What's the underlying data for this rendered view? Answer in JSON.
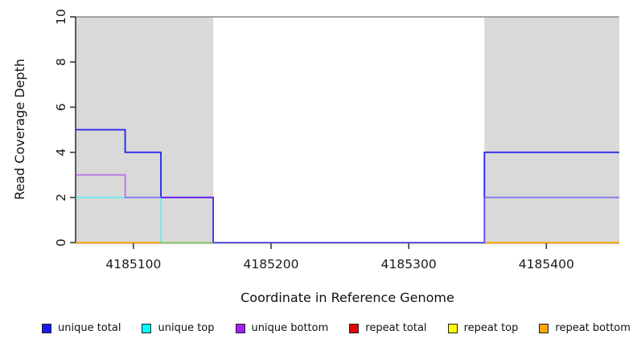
{
  "chart_data": {
    "type": "line",
    "subtype": "step-coverage",
    "title": "",
    "xlabel": "Coordinate in Reference Genome",
    "ylabel": "Read Coverage Depth",
    "xlim": [
      4185058,
      4185453
    ],
    "ylim": [
      0,
      10
    ],
    "x_ticks": [
      4185100,
      4185200,
      4185300,
      4185400
    ],
    "y_ticks": [
      0,
      2,
      4,
      6,
      8,
      10
    ],
    "grid": false,
    "cap_line": {
      "y": 10,
      "color": "#8C8C8C"
    },
    "shaded_regions": {
      "color": "#D9D9D9",
      "ranges": [
        [
          4185058,
          4185158
        ],
        [
          4185355,
          4185453
        ]
      ]
    },
    "series": [
      {
        "name": "repeat total",
        "color": "#E60000",
        "opacity": 1,
        "x": [
          4185058
        ],
        "y": [
          0
        ],
        "x_end": 4185453
      },
      {
        "name": "repeat top",
        "color": "#FFFF00",
        "opacity": 1,
        "x": [
          4185058
        ],
        "y": [
          0
        ],
        "x_end": 4185453
      },
      {
        "name": "repeat bottom",
        "color": "#FFA500",
        "opacity": 1,
        "x": [
          4185058
        ],
        "y": [
          0
        ],
        "x_end": 4185453
      },
      {
        "name": "unique total",
        "color": "#2020EE",
        "opacity": 1,
        "x": [
          4185058,
          4185094,
          4185120,
          4185158,
          4185355
        ],
        "y": [
          5,
          4,
          2,
          0,
          4
        ],
        "x_end": 4185453
      },
      {
        "name": "unique top",
        "color": "#00FFFF",
        "opacity": 0.5,
        "x": [
          4185058,
          4185120,
          4185355
        ],
        "y": [
          2,
          0,
          2
        ],
        "x_end": 4185453
      },
      {
        "name": "unique bottom",
        "color": "#A020F0",
        "opacity": 0.55,
        "x": [
          4185058,
          4185094,
          4185158,
          4185355
        ],
        "y": [
          3,
          2,
          0,
          2
        ],
        "x_end": 4185453
      }
    ],
    "legend": {
      "position": "bottom",
      "items": [
        {
          "label": "unique total",
          "color": "#1A1AEE"
        },
        {
          "label": "unique top",
          "color": "#00FFFF"
        },
        {
          "label": "unique bottom",
          "color": "#A020F0"
        },
        {
          "label": "repeat total",
          "color": "#E60000"
        },
        {
          "label": "repeat top",
          "color": "#FFFF00"
        },
        {
          "label": "repeat bottom",
          "color": "#FFA500"
        }
      ]
    }
  }
}
